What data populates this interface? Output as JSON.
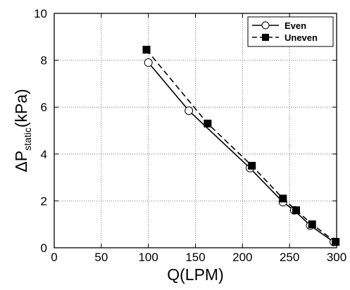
{
  "chart_data": {
    "type": "line",
    "xlabel": "Q(LPM)",
    "ylabel_main": "ΔP",
    "ylabel_sub": "static",
    "ylabel_unit": "(kPa)",
    "xlim": [
      0,
      300
    ],
    "ylim": [
      0,
      10
    ],
    "xticks": [
      0,
      50,
      100,
      150,
      200,
      250,
      300
    ],
    "yticks": [
      0,
      2,
      4,
      6,
      8,
      10
    ],
    "grid": true,
    "grid_style": "dotted",
    "legend_position": "top-right",
    "series": [
      {
        "name": "Even",
        "marker": "open-circle",
        "line": "solid",
        "color": "#000000",
        "x": [
          100,
          143,
          208,
          243,
          255,
          272,
          297
        ],
        "y": [
          7.9,
          5.85,
          3.4,
          1.95,
          1.6,
          0.95,
          0.25
        ]
      },
      {
        "name": "Uneven",
        "marker": "filled-square",
        "line": "dashed",
        "color": "#000000",
        "x": [
          98,
          163,
          210,
          243,
          257,
          274,
          299
        ],
        "y": [
          8.45,
          5.3,
          3.5,
          2.1,
          1.6,
          1.0,
          0.25
        ]
      }
    ]
  }
}
